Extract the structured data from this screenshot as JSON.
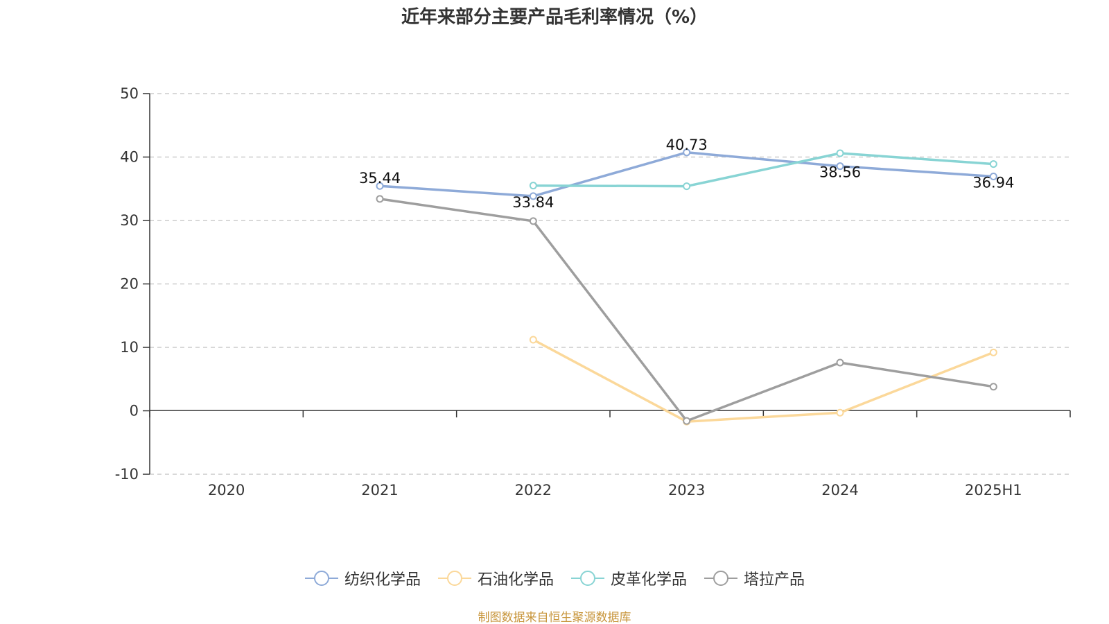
{
  "source_note": "制图数据来自恒生聚源数据库",
  "chart_data": {
    "type": "line",
    "title": "近年来部分主要产品毛利率情况（%）",
    "xlabel": "",
    "ylabel": "",
    "categories": [
      "2020",
      "2021",
      "2022",
      "2023",
      "2024",
      "2025H1"
    ],
    "ylim": [
      -10,
      50
    ],
    "yticks": [
      "-10",
      "0",
      "10",
      "20",
      "30",
      "40",
      "50"
    ],
    "grid": true,
    "legend_position": "bottom",
    "series": [
      {
        "name": "纺织化学品",
        "color": "#8eaad8",
        "values": [
          null,
          35.44,
          33.84,
          40.73,
          38.56,
          36.94
        ],
        "labels": [
          "",
          "35.44",
          "33.84",
          "40.73",
          "38.56",
          "36.94"
        ]
      },
      {
        "name": "石油化学品",
        "color": "#fbd89a",
        "values": [
          null,
          null,
          11.2,
          -1.7,
          -0.3,
          9.2
        ],
        "labels": [
          "",
          "",
          "",
          "",
          "",
          ""
        ]
      },
      {
        "name": "皮革化学品",
        "color": "#88d4d4",
        "values": [
          null,
          null,
          35.5,
          35.4,
          40.6,
          38.9
        ],
        "labels": [
          "",
          "",
          "",
          "",
          "",
          ""
        ]
      },
      {
        "name": "塔拉产品",
        "color": "#9e9e9e",
        "values": [
          null,
          33.4,
          29.9,
          -1.6,
          7.6,
          3.8
        ],
        "labels": [
          "",
          "",
          "",
          "",
          "",
          ""
        ]
      }
    ]
  }
}
